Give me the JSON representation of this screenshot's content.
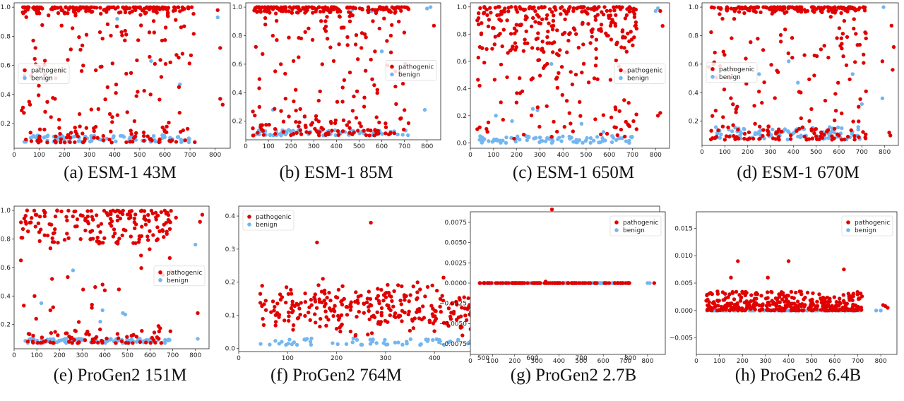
{
  "colors": {
    "pathogenic": "#e00000",
    "benign": "#73b6f0"
  },
  "chart_data": [
    {
      "id": "a",
      "type": "scatter",
      "caption": "(a) ESM-1 43M",
      "xlim": [
        0,
        860
      ],
      "ylim": [
        0.03,
        1.03
      ],
      "xticks": [
        0,
        100,
        200,
        300,
        400,
        500,
        600,
        700,
        800
      ],
      "yticks": [
        0.2,
        0.4,
        0.6,
        0.8,
        1.0
      ],
      "xtick_labels": [
        "0",
        "100",
        "200",
        "300",
        "400",
        "500",
        "600",
        "700",
        "800"
      ],
      "ytick_labels": [
        "0.2",
        "0.4",
        "0.6",
        "0.8",
        "1.0"
      ],
      "legend": {
        "position": "center-left",
        "entries": [
          "pathogenic",
          "benign"
        ]
      },
      "series": [
        {
          "name": "pathogenic",
          "pattern": "top",
          "low": 0.07,
          "high": 1.0,
          "seed": 11,
          "points": [
            [
              30,
              0.29
            ],
            [
              35,
              0.31
            ],
            [
              60,
              0.35
            ],
            [
              85,
              0.72
            ],
            [
              100,
              0.59
            ],
            [
              390,
              0.21
            ],
            [
              405,
              0.41
            ],
            [
              560,
              0.61
            ],
            [
              670,
              0.68
            ],
            [
              820,
              0.37
            ],
            [
              830,
              0.33
            ],
            [
              820,
              0.72
            ],
            [
              810,
              0.98
            ]
          ]
        },
        {
          "name": "benign",
          "pattern": "bottom",
          "low": 0.07,
          "high": 0.12,
          "seed": 12,
          "points": [
            [
              410,
              0.92
            ],
            [
              545,
              0.63
            ],
            [
              660,
              0.47
            ],
            [
              810,
              0.93
            ],
            [
              590,
              0.12
            ],
            [
              240,
              0.11
            ]
          ]
        }
      ]
    },
    {
      "id": "b",
      "type": "scatter",
      "caption": "(b) ESM-1 85M",
      "xlim": [
        0,
        860
      ],
      "ylim": [
        0.07,
        1.03
      ],
      "xticks": [
        0,
        100,
        200,
        300,
        400,
        500,
        600,
        700,
        800
      ],
      "yticks": [
        0.2,
        0.4,
        0.6,
        0.8,
        1.0
      ],
      "xtick_labels": [
        "0",
        "100",
        "200",
        "300",
        "400",
        "500",
        "600",
        "700",
        "800"
      ],
      "ytick_labels": [
        "0.2",
        "0.4",
        "0.6",
        "0.8",
        "1.0"
      ],
      "legend": {
        "position": "center-right",
        "entries": [
          "pathogenic",
          "benign"
        ]
      },
      "series": [
        {
          "name": "pathogenic",
          "pattern": "top",
          "low": 0.1,
          "high": 1.0,
          "seed": 21,
          "points": [
            [
              40,
              0.24
            ],
            [
              60,
              0.3
            ],
            [
              130,
              0.55
            ],
            [
              155,
              0.6
            ],
            [
              590,
              0.85
            ],
            [
              610,
              0.92
            ],
            [
              640,
              0.8
            ],
            [
              660,
              0.55
            ],
            [
              830,
              0.87
            ]
          ]
        },
        {
          "name": "benign",
          "pattern": "bottom",
          "low": 0.1,
          "high": 0.14,
          "seed": 22,
          "points": [
            [
              120,
              0.28
            ],
            [
              260,
              0.23
            ],
            [
              470,
              0.98
            ],
            [
              555,
              0.97
            ],
            [
              600,
              0.69
            ],
            [
              790,
              0.28
            ],
            [
              800,
              0.99
            ],
            [
              815,
              1.0
            ]
          ]
        }
      ]
    },
    {
      "id": "c",
      "type": "scatter",
      "caption": "(c) ESM-1 650M",
      "xlim": [
        0,
        860
      ],
      "ylim": [
        -0.04,
        1.03
      ],
      "xticks": [
        0,
        100,
        200,
        300,
        400,
        500,
        600,
        700,
        800
      ],
      "yticks": [
        0.0,
        0.2,
        0.4,
        0.6,
        0.8,
        1.0
      ],
      "xtick_labels": [
        "0",
        "100",
        "200",
        "300",
        "400",
        "500",
        "600",
        "700",
        "800"
      ],
      "ytick_labels": [
        "0.0",
        "0.2",
        "0.4",
        "0.6",
        "0.8",
        "1.0"
      ],
      "legend": {
        "position": "center-right",
        "entries": [
          "pathogenic",
          "benign"
        ]
      },
      "series": [
        {
          "name": "pathogenic",
          "pattern": "top-dense",
          "low": 0.03,
          "high": 1.0,
          "seed": 31,
          "points": [
            [
              30,
              0.1
            ],
            [
              40,
              0.42
            ],
            [
              60,
              0.59
            ],
            [
              810,
              0.2
            ],
            [
              820,
              0.22
            ],
            [
              830,
              0.86
            ],
            [
              820,
              0.97
            ]
          ]
        },
        {
          "name": "benign",
          "pattern": "bottom",
          "low": 0.0,
          "high": 0.05,
          "seed": 32,
          "points": [
            [
              110,
              0.2
            ],
            [
              180,
              0.16
            ],
            [
              270,
              0.25
            ],
            [
              290,
              0.24
            ],
            [
              350,
              0.58
            ],
            [
              480,
              0.14
            ],
            [
              575,
              0.08
            ],
            [
              800,
              0.97
            ],
            [
              810,
              0.99
            ]
          ]
        }
      ]
    },
    {
      "id": "d",
      "type": "scatter",
      "caption": "(d) ESM-1 670M",
      "xlim": [
        0,
        860
      ],
      "ylim": [
        0.03,
        1.03
      ],
      "xticks": [
        0,
        100,
        200,
        300,
        400,
        500,
        600,
        700,
        800
      ],
      "yticks": [
        0.2,
        0.4,
        0.6,
        0.8,
        1.0
      ],
      "xtick_labels": [
        "0",
        "100",
        "200",
        "300",
        "400",
        "500",
        "600",
        "700",
        "800"
      ],
      "ytick_labels": [
        "0.2",
        "0.4",
        "0.6",
        "0.8",
        "1.0"
      ],
      "legend": {
        "position": "center-left",
        "entries": [
          "pathogenic",
          "benign"
        ]
      },
      "series": [
        {
          "name": "pathogenic",
          "pattern": "top",
          "low": 0.07,
          "high": 1.0,
          "seed": 41,
          "points": [
            [
              30,
              0.58
            ],
            [
              50,
              0.6
            ],
            [
              830,
              0.87
            ],
            [
              840,
              0.72
            ],
            [
              835,
              0.56
            ],
            [
              825,
              0.1
            ],
            [
              820,
              0.12
            ],
            [
              790,
              0.62
            ]
          ]
        },
        {
          "name": "benign",
          "pattern": "bottom",
          "low": 0.07,
          "high": 0.16,
          "seed": 42,
          "points": [
            [
              250,
              0.53
            ],
            [
              380,
              0.62
            ],
            [
              420,
              0.47
            ],
            [
              660,
              0.53
            ],
            [
              700,
              0.32
            ],
            [
              790,
              0.36
            ],
            [
              795,
              1.0
            ]
          ]
        }
      ]
    },
    {
      "id": "e",
      "type": "scatter",
      "caption": "(e) ProGen2 151M",
      "xlim": [
        0,
        860
      ],
      "ylim": [
        0.03,
        1.03
      ],
      "xticks": [
        0,
        100,
        200,
        300,
        400,
        500,
        600,
        700,
        800
      ],
      "yticks": [
        0.2,
        0.4,
        0.6,
        0.8,
        1.0
      ],
      "xtick_labels": [
        "0",
        "100",
        "200",
        "300",
        "400",
        "500",
        "600",
        "700",
        "800"
      ],
      "ytick_labels": [
        "0.2",
        "0.4",
        "0.6",
        "0.8",
        "1.0"
      ],
      "legend": {
        "position": "center-right",
        "entries": [
          "pathogenic",
          "benign"
        ]
      },
      "series": [
        {
          "name": "pathogenic",
          "pattern": "top-band",
          "low": 0.07,
          "high": 1.0,
          "seed": 51,
          "points": [
            [
              30,
              0.65
            ],
            [
              90,
              0.4
            ],
            [
              160,
              0.3
            ],
            [
              390,
              0.48
            ],
            [
              400,
              0.44
            ],
            [
              810,
              0.28
            ],
            [
              820,
              0.92
            ],
            [
              830,
              0.97
            ]
          ]
        },
        {
          "name": "benign",
          "pattern": "bottom",
          "low": 0.07,
          "high": 0.1,
          "seed": 52,
          "points": [
            [
              120,
              0.35
            ],
            [
              260,
              0.58
            ],
            [
              380,
              0.22
            ],
            [
              390,
              0.3
            ],
            [
              480,
              0.28
            ],
            [
              490,
              0.27
            ],
            [
              800,
              0.76
            ],
            [
              810,
              0.1
            ]
          ]
        }
      ]
    },
    {
      "id": "f",
      "type": "scatter",
      "caption": "(f) ProGen2 764M",
      "xlim": [
        0,
        860
      ],
      "ylim": [
        -0.01,
        0.43
      ],
      "xticks": [
        0,
        100,
        200,
        300,
        400,
        500,
        600,
        700,
        800
      ],
      "yticks": [
        0.0,
        0.1,
        0.2,
        0.3,
        0.4
      ],
      "xtick_labels": [
        "0",
        "100",
        "200",
        "300",
        "400",
        "500",
        "600",
        "700",
        "800"
      ],
      "ytick_labels": [
        "0.0",
        "0.1",
        "0.2",
        "0.3",
        "0.4"
      ],
      "legend": {
        "position": "top-left",
        "entries": [
          "pathogenic",
          "benign"
        ]
      },
      "series": [
        {
          "name": "pathogenic",
          "pattern": "mid-cloud",
          "low": 0.0,
          "high": 0.2,
          "seed": 61,
          "points": [
            [
              270,
              0.38
            ],
            [
              160,
              0.32
            ],
            [
              580,
              0.4
            ],
            [
              640,
              0.42
            ],
            [
              660,
              0.35
            ],
            [
              790,
              0.24
            ],
            [
              820,
              0.16
            ],
            [
              830,
              0.17
            ]
          ]
        },
        {
          "name": "benign",
          "pattern": "bottom",
          "low": 0.01,
          "high": 0.03,
          "seed": 62,
          "points": [
            [
              800,
              0.105
            ],
            [
              810,
              0.04
            ]
          ]
        }
      ]
    },
    {
      "id": "g",
      "type": "scatter",
      "caption": "(g) ProGen2 2.7B",
      "xlim": [
        0,
        880
      ],
      "ylim": [
        -0.0088,
        0.0088
      ],
      "xticks": [
        0,
        100,
        200,
        300,
        400,
        500,
        600,
        700,
        800
      ],
      "yticks": [
        -0.0075,
        -0.005,
        -0.0025,
        0.0,
        0.0025,
        0.005,
        0.0075
      ],
      "xtick_labels": [
        "0",
        "100",
        "200",
        "300",
        "400",
        "500",
        "600",
        "700",
        "800"
      ],
      "ytick_labels": [
        "−0.0075",
        "−0.0050",
        "−0.0025",
        "0.0000",
        "0.0025",
        "0.0050",
        "0.0075"
      ],
      "legend": {
        "position": "top-right",
        "entries": [
          "pathogenic",
          "benign"
        ]
      },
      "series": [
        {
          "name": "pathogenic",
          "pattern": "flat",
          "low": 0.0,
          "high": 0.0,
          "seed": 71,
          "points": [
            [
              830,
              0.0
            ],
            [
              340,
              0.0002
            ]
          ]
        },
        {
          "name": "benign",
          "pattern": "flat",
          "low": 0.0,
          "high": 0.0,
          "seed": 72,
          "points": [
            [
              800,
              0.0
            ],
            [
              810,
              0.0
            ]
          ]
        }
      ]
    },
    {
      "id": "h",
      "type": "scatter",
      "caption": "(h) ProGen2 6.4B",
      "xlim": [
        0,
        870
      ],
      "ylim": [
        -0.008,
        0.018
      ],
      "xticks": [
        0,
        100,
        200,
        300,
        400,
        500,
        600,
        700,
        800
      ],
      "yticks": [
        -0.005,
        0.0,
        0.005,
        0.01,
        0.015
      ],
      "xtick_labels": [
        "0",
        "100",
        "200",
        "300",
        "400",
        "500",
        "600",
        "700",
        "800"
      ],
      "ytick_labels": [
        "−0.005",
        "0.000",
        "0.005",
        "0.010",
        "0.015"
      ],
      "legend": {
        "position": "top-right",
        "entries": [
          "pathogenic",
          "benign"
        ]
      },
      "series": [
        {
          "name": "pathogenic",
          "pattern": "low-cloud",
          "low": 0.0,
          "high": 0.003,
          "seed": 81,
          "points": [
            [
              180,
              0.009
            ],
            [
              400,
              0.009
            ],
            [
              310,
              0.006
            ],
            [
              640,
              0.0075
            ],
            [
              150,
              0.006
            ],
            [
              820,
              0.0008
            ],
            [
              830,
              0.0005
            ],
            [
              810,
              0.001
            ]
          ]
        },
        {
          "name": "benign",
          "pattern": "flat",
          "low": 0.0,
          "high": 0.0,
          "seed": 82,
          "points": [
            [
              780,
              0.0
            ],
            [
              800,
              0.0
            ]
          ]
        }
      ]
    }
  ]
}
